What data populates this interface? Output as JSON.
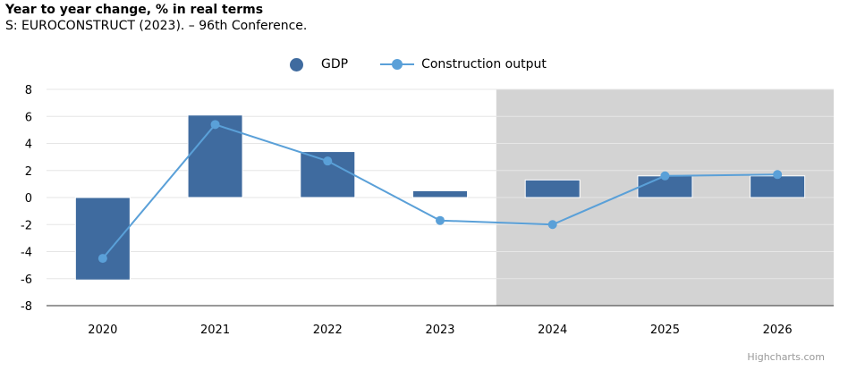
{
  "header": {
    "title": "Year to year change, % in real terms",
    "subtitle": "S: EUROCONSTRUCT (2023). – 96th Conference."
  },
  "credits": "Highcharts.com",
  "colors": {
    "gdp": "#3f6b9f",
    "construction": "#5aa0d8",
    "forecast_band": "#d3d3d3",
    "grid": "#e6e6e6"
  },
  "chart_data": {
    "type": "bar",
    "categories": [
      "2020",
      "2021",
      "2022",
      "2023",
      "2024",
      "2025",
      "2026"
    ],
    "ylim": [
      -8,
      8
    ],
    "yticks": [
      -8,
      -6,
      -4,
      -2,
      0,
      2,
      4,
      6,
      8
    ],
    "ytick_labels": [
      "-8",
      "-6",
      "-4",
      "-2",
      "0",
      "2",
      "4",
      "6",
      "8"
    ],
    "forecast_from": "2024",
    "grid": true,
    "legend_position": "top-center",
    "series": [
      {
        "name": "GDP",
        "type": "bar",
        "values": [
          -6.1,
          6.1,
          3.4,
          0.5,
          1.3,
          1.6,
          1.6
        ]
      },
      {
        "name": "Construction output",
        "type": "line",
        "values": [
          -4.5,
          5.4,
          2.7,
          -1.7,
          -2.0,
          1.6,
          1.7
        ]
      }
    ]
  }
}
